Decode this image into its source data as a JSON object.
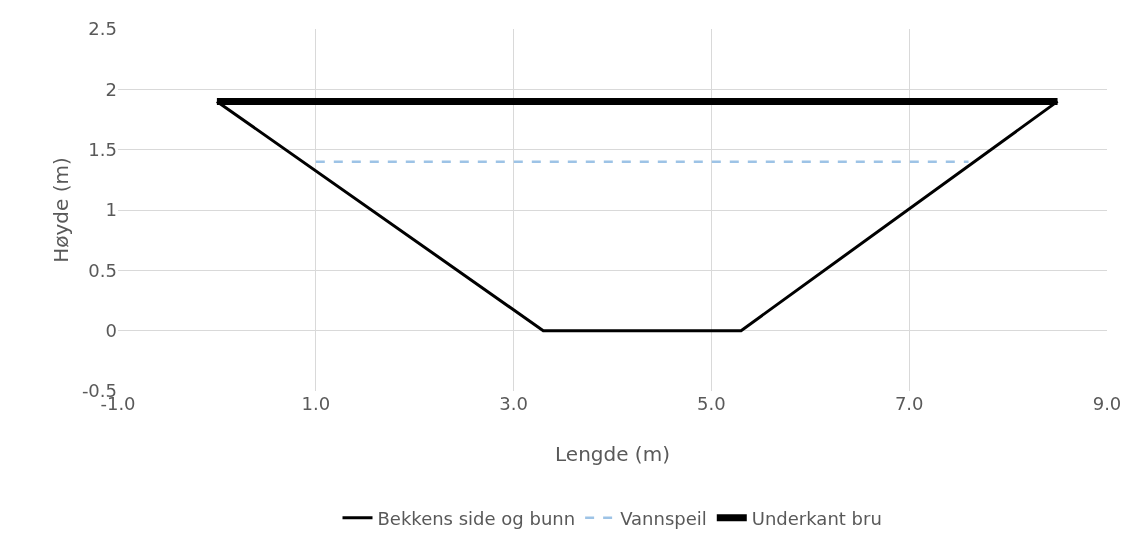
{
  "chart_data": {
    "type": "line",
    "xlabel": "Lengde (m)",
    "ylabel": "Høyde (m)",
    "series": [
      {
        "name": "Bekkens side og bunn",
        "color": "#000000",
        "x": [
          0,
          3.3,
          5.3,
          8.5
        ],
        "values": [
          1.9,
          0,
          0,
          1.9
        ],
        "line_style": "solid"
      },
      {
        "name": "Vannspeil",
        "color": "#9dc3e6",
        "x": [
          1.0,
          7.6
        ],
        "values": [
          1.4,
          1.4
        ],
        "line_style": "dashed"
      },
      {
        "name": "Underkant bru",
        "color": "#000000",
        "x": [
          0,
          8.5
        ],
        "values": [
          1.9,
          1.9
        ],
        "line_style": "solid"
      }
    ],
    "xlim": [
      -1,
      9
    ],
    "xticks": [
      {
        "value": -1,
        "label": "-1.0"
      },
      {
        "value": 1,
        "label": "1.0"
      },
      {
        "value": 3,
        "label": "3.0"
      },
      {
        "value": 5,
        "label": "5.0"
      },
      {
        "value": 7,
        "label": "7.0"
      },
      {
        "value": 9,
        "label": "9.0"
      }
    ],
    "ylim": [
      -0.5,
      2.5
    ],
    "yticks": [
      -0.5,
      0,
      0.5,
      1,
      1.5,
      2,
      2.5
    ],
    "grid": true,
    "legend": "bottom",
    "marker": "none"
  }
}
